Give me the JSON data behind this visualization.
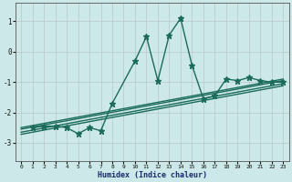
{
  "xlabel": "Humidex (Indice chaleur)",
  "xlim": [
    -0.5,
    23.5
  ],
  "ylim": [
    -3.6,
    1.6
  ],
  "yticks": [
    -3,
    -2,
    -1,
    0,
    1
  ],
  "xticks": [
    0,
    1,
    2,
    3,
    4,
    5,
    6,
    7,
    8,
    9,
    10,
    11,
    12,
    13,
    14,
    15,
    16,
    17,
    18,
    19,
    20,
    21,
    22,
    23
  ],
  "bg_color": "#cce8e8",
  "grid_color": "#b8c8c8",
  "line_color": "#1a6b5a",
  "main_x": [
    1,
    2,
    3,
    4,
    5,
    6,
    7,
    8,
    10,
    11,
    12,
    13,
    14,
    15,
    16,
    17,
    18,
    19,
    20,
    21,
    22,
    23
  ],
  "main_y": [
    -2.5,
    -2.45,
    -2.45,
    -2.5,
    -2.7,
    -2.5,
    -2.6,
    -1.7,
    -0.3,
    0.5,
    -0.95,
    0.55,
    1.1,
    -0.45,
    -1.55,
    -1.45,
    -0.9,
    -0.95,
    -0.85,
    -0.95,
    -1.0,
    -1.0
  ],
  "trend_lines": [
    {
      "x": [
        0,
        23
      ],
      "y": [
        -2.5,
        -0.9
      ]
    },
    {
      "x": [
        0,
        23
      ],
      "y": [
        -2.55,
        -0.95
      ]
    },
    {
      "x": [
        0,
        23
      ],
      "y": [
        -2.65,
        -1.05
      ]
    },
    {
      "x": [
        0,
        23
      ],
      "y": [
        -2.72,
        -1.12
      ]
    }
  ],
  "linewidth": 1.0,
  "markersize": 4.5
}
